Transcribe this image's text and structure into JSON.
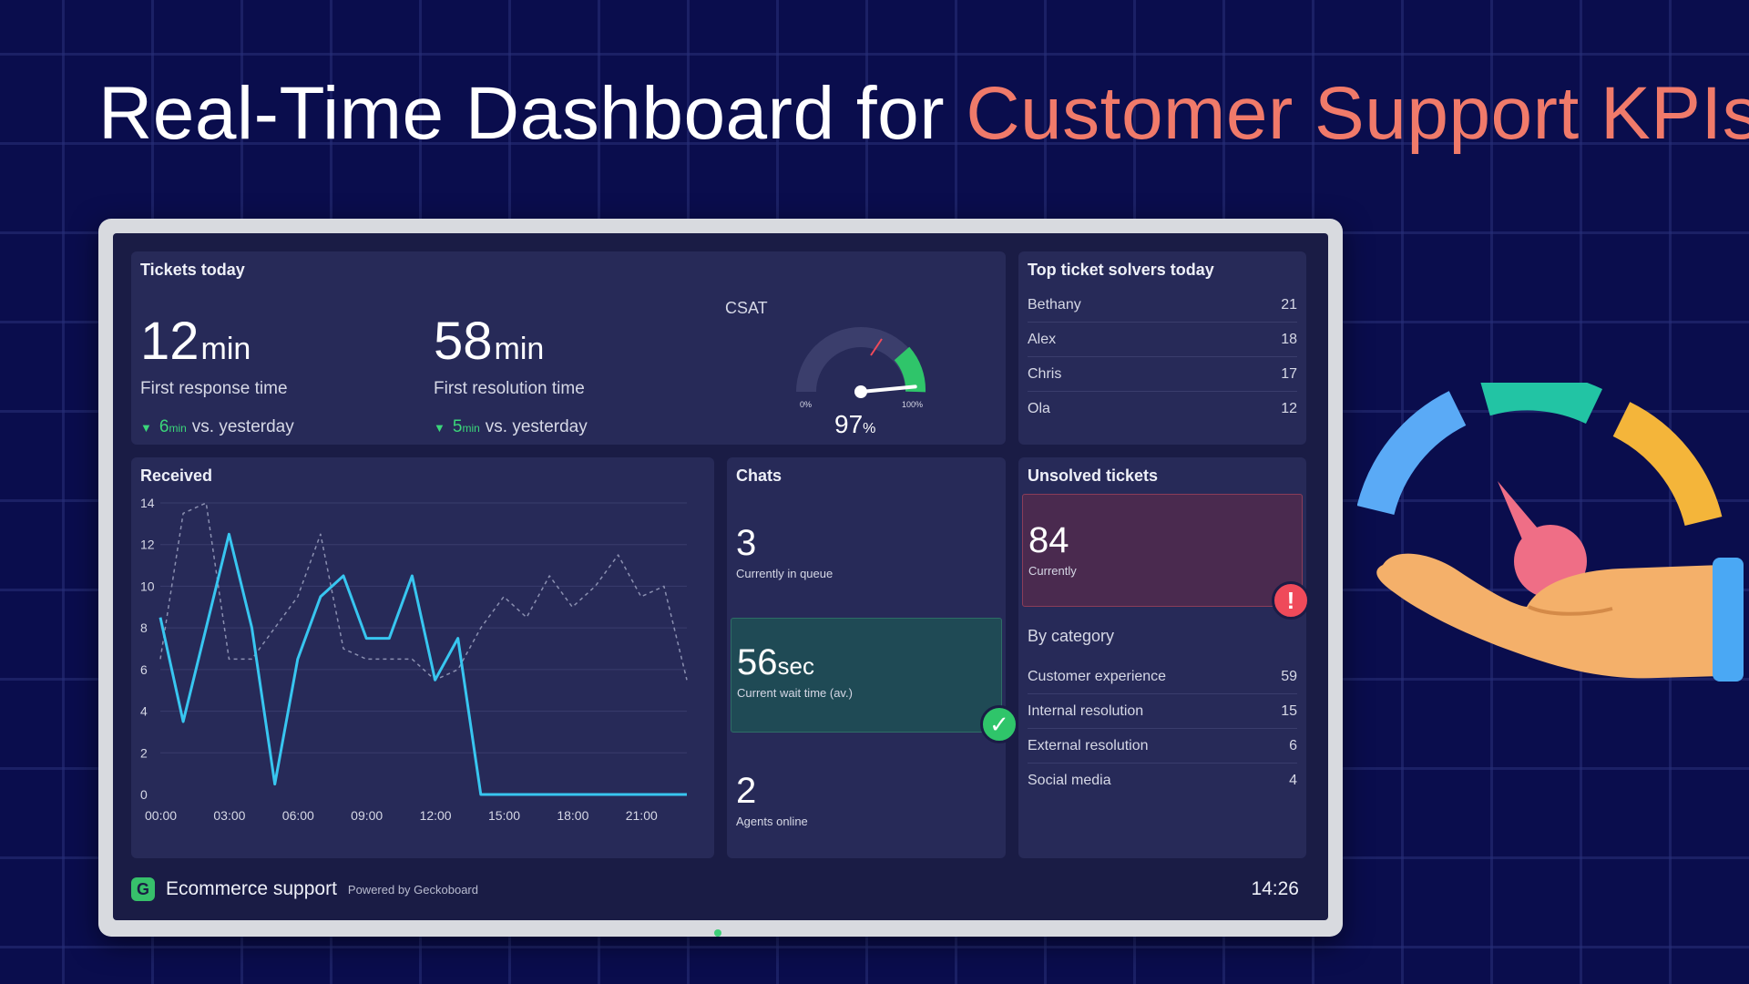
{
  "hero": {
    "title_white": "Real-Time Dashboard for",
    "title_accent": "Customer Support KPIs",
    "accent_color": "#f07a6a"
  },
  "tickets_today": {
    "title": "Tickets today",
    "first_response": {
      "value": "12",
      "unit": "min",
      "label": "First response time",
      "delta_value": "6",
      "delta_unit": "min",
      "delta_label": "vs. yesterday"
    },
    "first_resolution": {
      "value": "58",
      "unit": "min",
      "label": "First resolution time",
      "delta_value": "5",
      "delta_unit": "min",
      "delta_label": "vs. yesterday"
    },
    "csat": {
      "label": "CSAT",
      "value": "97",
      "unit": "%",
      "gauge_min": "0%",
      "gauge_max": "100%",
      "level": 0.97
    }
  },
  "top_solvers": {
    "title": "Top ticket solvers today",
    "rows": [
      {
        "name": "Bethany",
        "count": "21"
      },
      {
        "name": "Alex",
        "count": "18"
      },
      {
        "name": "Chris",
        "count": "17"
      },
      {
        "name": "Ola",
        "count": "12"
      }
    ]
  },
  "received": {
    "title": "Received"
  },
  "chats": {
    "title": "Chats",
    "queue": {
      "value": "3",
      "label": "Currently in queue"
    },
    "wait": {
      "value": "56",
      "unit": "sec",
      "label": "Current wait time (av.)"
    },
    "agents": {
      "value": "2",
      "label": "Agents online"
    }
  },
  "unsolved": {
    "title": "Unsolved tickets",
    "current": {
      "value": "84",
      "label": "Currently"
    },
    "by_category_label": "By category",
    "categories": [
      {
        "name": "Customer experience",
        "count": "59"
      },
      {
        "name": "Internal resolution",
        "count": "15"
      },
      {
        "name": "External resolution",
        "count": "6"
      },
      {
        "name": "Social media",
        "count": "4"
      }
    ]
  },
  "footer": {
    "title": "Ecommerce support",
    "powered": "Powered by Geckoboard",
    "clock": "14:26"
  },
  "chart_data": {
    "type": "line",
    "title": "Received",
    "x": [
      "00:00",
      "03:00",
      "06:00",
      "09:00",
      "12:00",
      "15:00",
      "18:00",
      "21:00"
    ],
    "ylim": [
      0,
      14
    ],
    "yticks": [
      0,
      2,
      4,
      6,
      8,
      10,
      12,
      14
    ],
    "grid": true,
    "series": [
      {
        "style": "solid",
        "color": "#38c6f0",
        "points": [
          [
            0,
            8.5
          ],
          [
            1,
            3.5
          ],
          [
            2,
            8
          ],
          [
            3,
            12.5
          ],
          [
            4,
            8
          ],
          [
            5,
            0.5
          ],
          [
            6,
            6.5
          ],
          [
            7,
            9.5
          ],
          [
            8,
            10.5
          ],
          [
            9,
            7.5
          ],
          [
            10,
            7.5
          ],
          [
            11,
            10.5
          ],
          [
            12,
            5.5
          ],
          [
            13,
            7.5
          ],
          [
            14,
            0
          ],
          [
            15,
            0
          ],
          [
            16,
            0
          ],
          [
            17,
            0
          ],
          [
            18,
            0
          ],
          [
            19,
            0
          ],
          [
            20,
            0
          ],
          [
            21,
            0
          ],
          [
            22,
            0
          ],
          [
            23,
            0
          ]
        ]
      },
      {
        "style": "dashed",
        "color": "#8a8fb0",
        "points": [
          [
            0,
            6.5
          ],
          [
            1,
            13.5
          ],
          [
            2,
            14
          ],
          [
            3,
            6.5
          ],
          [
            4,
            6.5
          ],
          [
            5,
            8
          ],
          [
            6,
            9.5
          ],
          [
            7,
            12.5
          ],
          [
            8,
            7
          ],
          [
            9,
            6.5
          ],
          [
            10,
            6.5
          ],
          [
            11,
            6.5
          ],
          [
            12,
            5.5
          ],
          [
            13,
            6
          ],
          [
            14,
            8
          ],
          [
            15,
            9.5
          ],
          [
            16,
            8.5
          ],
          [
            17,
            10.5
          ],
          [
            18,
            9
          ],
          [
            19,
            10
          ],
          [
            20,
            11.5
          ],
          [
            21,
            9.5
          ],
          [
            22,
            10
          ],
          [
            23,
            5.5
          ]
        ]
      }
    ]
  }
}
